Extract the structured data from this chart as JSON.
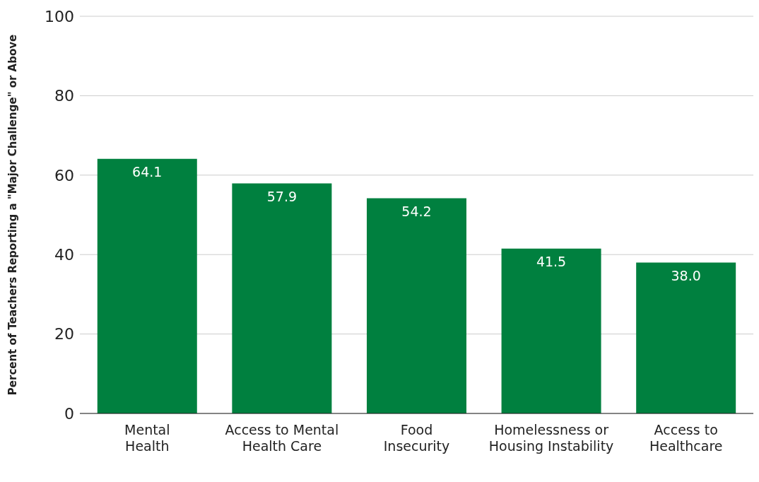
{
  "chart_data": {
    "type": "bar",
    "ylabel": "Percent of Teachers Reporting a \"Major Challenge\" or Above",
    "categories": [
      "Mental\nHealth",
      "Access to Mental\nHealth Care",
      "Food\nInsecurity",
      "Homelessness or\nHousing Instability",
      "Access to\nHealthcare"
    ],
    "values": [
      64.1,
      57.9,
      54.2,
      41.5,
      38.0
    ],
    "color": "#00803f",
    "ylim": [
      0,
      100
    ],
    "yticks": [
      0,
      20,
      40,
      60,
      80,
      100
    ],
    "grid": "y",
    "value_labels": [
      "64.1",
      "57.9",
      "54.2",
      "41.5",
      "38.0"
    ]
  }
}
